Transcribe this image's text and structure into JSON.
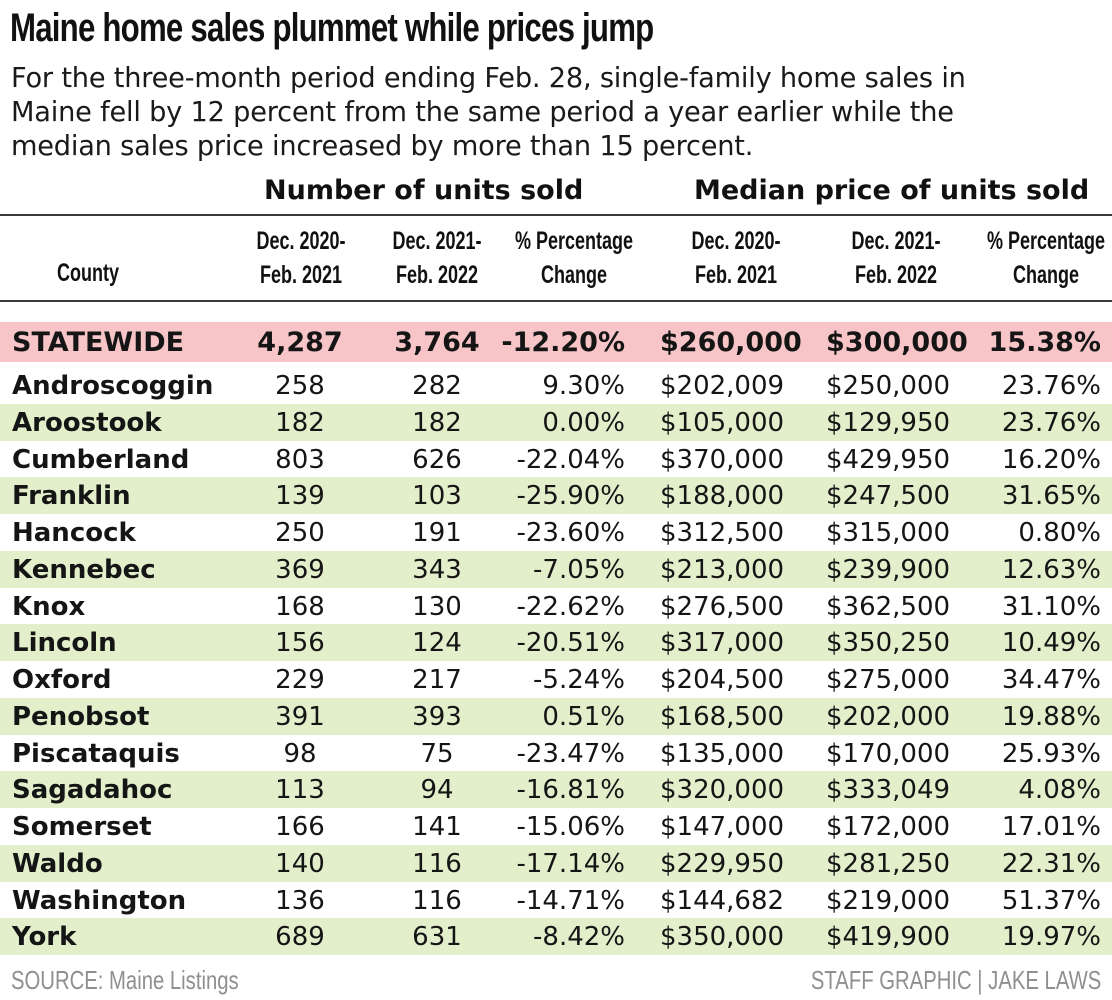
{
  "title": "Maine home sales plummet while prices jump",
  "subtitle_lines": [
    "For the three-month period ending Feb. 28, single-family home sales in",
    "Maine fell by 12 percent from the same period a year earlier while the",
    "median sales price increased by more than 15 percent."
  ],
  "colors": {
    "statewide_band": "#f7c5c8",
    "alt_row_band": "#e3eecb",
    "footer_text": "#8f8f8f"
  },
  "chart_data": {
    "type": "table",
    "title": "Maine home sales plummet while prices jump",
    "column_groups": [
      "Number of units sold",
      "Median price of units sold"
    ],
    "columns": [
      {
        "line1": "County",
        "line2": ""
      },
      {
        "line1": "Dec. 2020-",
        "line2": "Feb. 2021"
      },
      {
        "line1": "Dec. 2021-",
        "line2": "Feb. 2022"
      },
      {
        "line1": "% Percentage",
        "line2": "Change"
      },
      {
        "line1": "Dec. 2020-",
        "line2": "Feb. 2021"
      },
      {
        "line1": "Dec. 2021-",
        "line2": "Feb. 2022"
      },
      {
        "line1": "% Percentage",
        "line2": "Change"
      }
    ],
    "statewide": [
      "STATEWIDE",
      "4,287",
      "3,764",
      "-12.20%",
      "$260,000",
      "$300,000",
      "15.38%"
    ],
    "rows": [
      [
        "Androscoggin",
        "258",
        "282",
        "9.30%",
        "$202,009",
        "$250,000",
        "23.76%"
      ],
      [
        "Aroostook",
        "182",
        "182",
        "0.00%",
        "$105,000",
        "$129,950",
        "23.76%"
      ],
      [
        "Cumberland",
        "803",
        "626",
        "-22.04%",
        "$370,000",
        "$429,950",
        "16.20%"
      ],
      [
        "Franklin",
        "139",
        "103",
        "-25.90%",
        "$188,000",
        "$247,500",
        "31.65%"
      ],
      [
        "Hancock",
        "250",
        "191",
        "-23.60%",
        "$312,500",
        "$315,000",
        "0.80%"
      ],
      [
        "Kennebec",
        "369",
        "343",
        "-7.05%",
        "$213,000",
        "$239,900",
        "12.63%"
      ],
      [
        "Knox",
        "168",
        "130",
        "-22.62%",
        "$276,500",
        "$362,500",
        "31.10%"
      ],
      [
        "Lincoln",
        "156",
        "124",
        "-20.51%",
        "$317,000",
        "$350,250",
        "10.49%"
      ],
      [
        "Oxford",
        "229",
        "217",
        "-5.24%",
        "$204,500",
        "$275,000",
        "34.47%"
      ],
      [
        "Penobsot",
        "391",
        "393",
        "0.51%",
        "$168,500",
        "$202,000",
        "19.88%"
      ],
      [
        "Piscataquis",
        "98",
        "75",
        "-23.47%",
        "$135,000",
        "$170,000",
        "25.93%"
      ],
      [
        "Sagadahoc",
        "113",
        "94",
        "-16.81%",
        "$320,000",
        "$333,049",
        "4.08%"
      ],
      [
        "Somerset",
        "166",
        "141",
        "-15.06%",
        "$147,000",
        "$172,000",
        "17.01%"
      ],
      [
        "Waldo",
        "140",
        "116",
        "-17.14%",
        "$229,950",
        "$281,250",
        "22.31%"
      ],
      [
        "Washington",
        "136",
        "116",
        "-14.71%",
        "$144,682",
        "$219,000",
        "51.37%"
      ],
      [
        "York",
        "689",
        "631",
        "-8.42%",
        "$350,000",
        "$419,900",
        "19.97%"
      ]
    ]
  },
  "footer": {
    "source": "SOURCE: Maine Listings",
    "credit": "STAFF GRAPHIC | JAKE LAWS"
  }
}
